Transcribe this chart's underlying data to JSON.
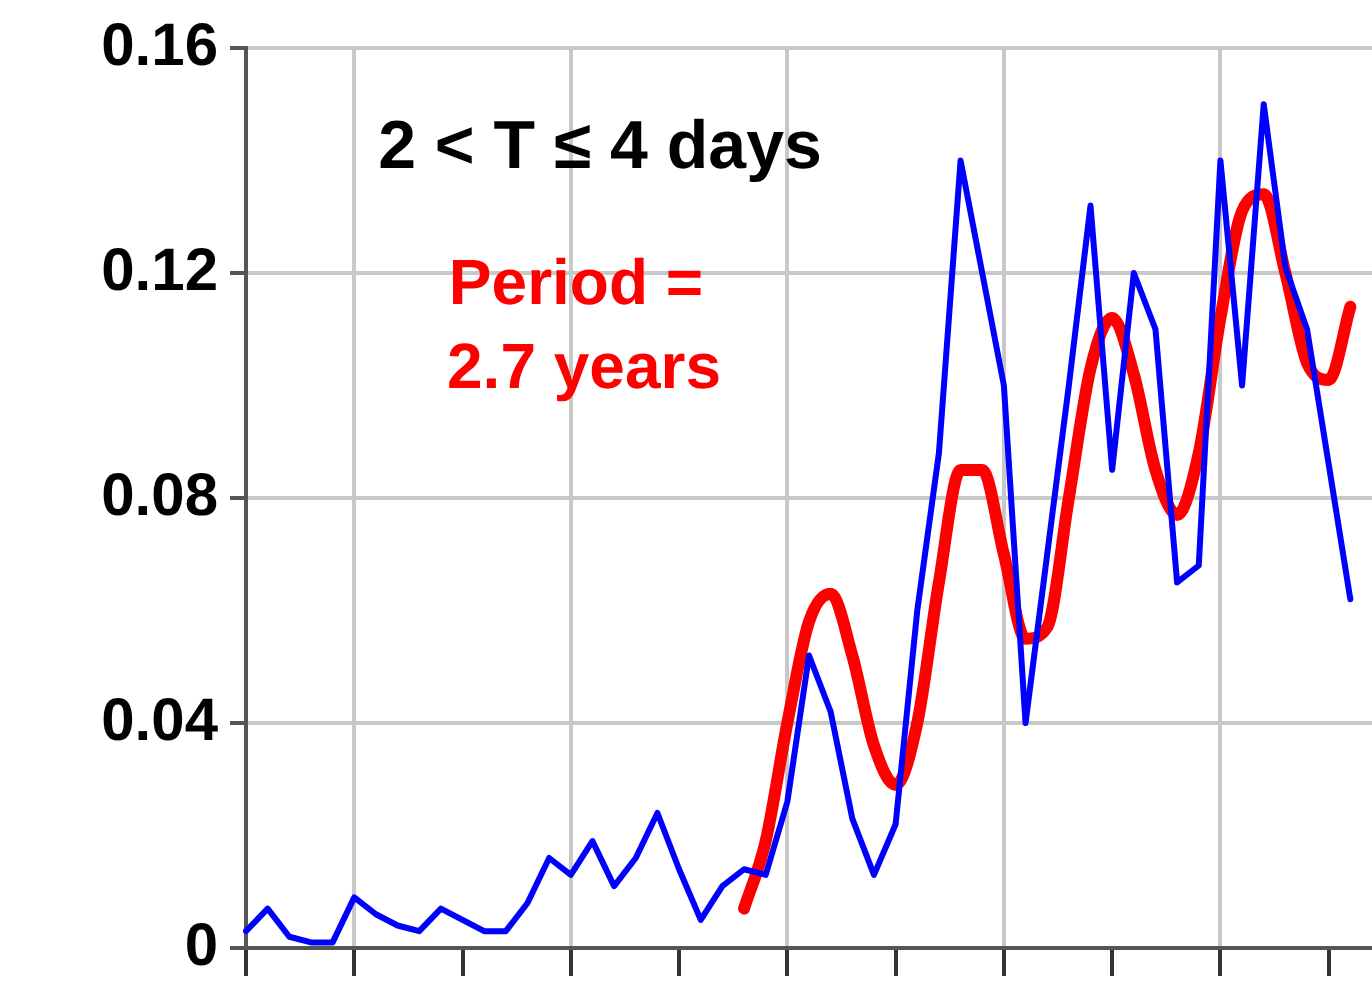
{
  "chart_data": {
    "type": "line",
    "categories": [
      null,
      null,
      null,
      null,
      null,
      null,
      null,
      null,
      null,
      null,
      null,
      null,
      null,
      null,
      null,
      null,
      null,
      null,
      null,
      null,
      null,
      null,
      null,
      null,
      null,
      null,
      null,
      null,
      null,
      null,
      null,
      null,
      null,
      null,
      null,
      null,
      null,
      null,
      null,
      null,
      null,
      null,
      null,
      null,
      null,
      null,
      null,
      null,
      null,
      null,
      null,
      null,
      null
    ],
    "series": [
      {
        "color": "#0000ff",
        "values": [
          0.003,
          0.007,
          0.002,
          0.001,
          0.001,
          0.009,
          0.006,
          0.004,
          0.003,
          0.007,
          0.005,
          0.003,
          0.003,
          0.008,
          0.016,
          0.013,
          0.019,
          0.011,
          0.016,
          0.024,
          0.014,
          0.005,
          0.011,
          0.014,
          0.013,
          0.026,
          0.052,
          0.042,
          0.023,
          0.013,
          0.022,
          0.06,
          0.088,
          0.14,
          0.12,
          0.1,
          0.04,
          0.07,
          0.1,
          0.132,
          0.085,
          0.12,
          0.11,
          0.065,
          0.068,
          0.14,
          0.1,
          0.15,
          0.121,
          0.11,
          0.086,
          0.062,
          null
        ]
      },
      {
        "color": "#ff0000",
        "values": [
          null,
          null,
          null,
          null,
          null,
          null,
          null,
          null,
          null,
          null,
          null,
          null,
          null,
          null,
          null,
          null,
          null,
          null,
          null,
          null,
          null,
          null,
          null,
          0.007,
          0.019,
          0.04,
          0.058,
          0.063,
          0.052,
          0.036,
          0.029,
          0.04,
          0.065,
          0.085,
          0.085,
          0.07,
          0.055,
          0.057,
          0.08,
          0.103,
          0.112,
          0.102,
          0.085,
          0.077,
          0.088,
          0.112,
          0.131,
          0.134,
          0.12,
          0.104,
          0.101,
          0.114,
          null
        ]
      }
    ],
    "ylim": [
      0,
      0.16
    ],
    "yticks": [
      0,
      0.04,
      0.08,
      0.12,
      0.16
    ],
    "grid": true,
    "legend": false,
    "tick_labels": "y",
    "annotations": [
      "2 < T ≤ 4 days",
      "Period =",
      "2.7 years"
    ]
  }
}
